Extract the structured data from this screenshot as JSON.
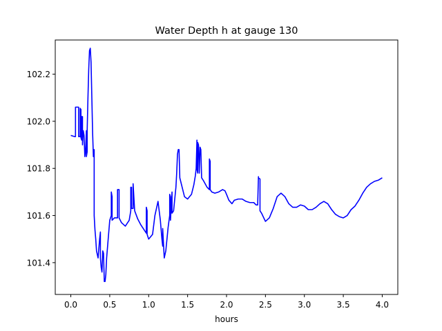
{
  "chart_data": {
    "type": "line",
    "title": "Water Depth h at gauge 130",
    "xlabel": "hours",
    "ylabel": "",
    "xlim": [
      -0.2,
      4.2
    ],
    "ylim": [
      101.265,
      102.345
    ],
    "xticks": [
      0.0,
      0.5,
      1.0,
      1.5,
      2.0,
      2.5,
      3.0,
      3.5,
      4.0
    ],
    "xtick_labels": [
      "0.0",
      "0.5",
      "1.0",
      "1.5",
      "2.0",
      "2.5",
      "3.0",
      "3.5",
      "4.0"
    ],
    "yticks": [
      101.4,
      101.6,
      101.8,
      102.0,
      102.2
    ],
    "ytick_labels": [
      "101.4",
      "101.6",
      "101.8",
      "102.0",
      "102.2"
    ],
    "grid": false,
    "series": [
      {
        "color": "#0000ff",
        "x": [
          0.0,
          0.05,
          0.06,
          0.06,
          0.1,
          0.1,
          0.12,
          0.12,
          0.13,
          0.13,
          0.14,
          0.14,
          0.15,
          0.15,
          0.16,
          0.17,
          0.18,
          0.19,
          0.2,
          0.2,
          0.21,
          0.21,
          0.22,
          0.23,
          0.24,
          0.25,
          0.26,
          0.27,
          0.28,
          0.29,
          0.3,
          0.3,
          0.31,
          0.32,
          0.33,
          0.35,
          0.37,
          0.38,
          0.38,
          0.39,
          0.4,
          0.41,
          0.42,
          0.43,
          0.44,
          0.45,
          0.46,
          0.48,
          0.5,
          0.52,
          0.52,
          0.53,
          0.53,
          0.56,
          0.6,
          0.6,
          0.62,
          0.62,
          0.65,
          0.7,
          0.75,
          0.77,
          0.77,
          0.78,
          0.78,
          0.8,
          0.8,
          0.82,
          0.86,
          0.9,
          0.93,
          0.97,
          0.97,
          0.98,
          0.98,
          1.0,
          1.05,
          1.08,
          1.12,
          1.15,
          1.17,
          1.18,
          1.18,
          1.2,
          1.22,
          1.25,
          1.27,
          1.27,
          1.28,
          1.28,
          1.3,
          1.3,
          1.32,
          1.35,
          1.36,
          1.37,
          1.38,
          1.39,
          1.4,
          1.43,
          1.46,
          1.5,
          1.55,
          1.58,
          1.6,
          1.61,
          1.62,
          1.62,
          1.63,
          1.63,
          1.64,
          1.65,
          1.66,
          1.67,
          1.68,
          1.7,
          1.75,
          1.78,
          1.78,
          1.79,
          1.79,
          1.81,
          1.85,
          1.9,
          1.95,
          1.98,
          2.0,
          2.03,
          2.07,
          2.1,
          2.15,
          2.2,
          2.25,
          2.3,
          2.35,
          2.38,
          2.4,
          2.41,
          2.41,
          2.43,
          2.43,
          2.45,
          2.5,
          2.55,
          2.6,
          2.65,
          2.7,
          2.75,
          2.8,
          2.85,
          2.9,
          2.95,
          3.0,
          3.05,
          3.1,
          3.15,
          3.2,
          3.25,
          3.3,
          3.35,
          3.4,
          3.45,
          3.5,
          3.55,
          3.6,
          3.65,
          3.7,
          3.75,
          3.8,
          3.85,
          3.9,
          3.95,
          4.0
        ],
        "y": [
          101.94,
          101.935,
          101.935,
          102.06,
          102.06,
          101.935,
          101.935,
          102.055,
          102.05,
          101.93,
          101.92,
          102.02,
          102.02,
          101.9,
          101.96,
          101.94,
          101.85,
          101.88,
          101.96,
          101.85,
          101.87,
          101.96,
          102.1,
          102.22,
          102.3,
          102.31,
          102.25,
          102.1,
          101.95,
          101.85,
          101.88,
          101.6,
          101.54,
          101.5,
          101.45,
          101.42,
          101.5,
          101.53,
          101.42,
          101.38,
          101.36,
          101.45,
          101.44,
          101.32,
          101.32,
          101.35,
          101.42,
          101.5,
          101.58,
          101.6,
          101.7,
          101.68,
          101.58,
          101.59,
          101.59,
          101.71,
          101.71,
          101.59,
          101.57,
          101.555,
          101.58,
          101.62,
          101.72,
          101.72,
          101.63,
          101.63,
          101.735,
          101.62,
          101.585,
          101.56,
          101.545,
          101.525,
          101.635,
          101.62,
          101.52,
          101.5,
          101.52,
          101.6,
          101.66,
          101.58,
          101.5,
          101.47,
          101.545,
          101.42,
          101.45,
          101.55,
          101.6,
          101.69,
          101.68,
          101.58,
          101.7,
          101.61,
          101.62,
          101.72,
          101.78,
          101.86,
          101.88,
          101.88,
          101.76,
          101.72,
          101.68,
          101.67,
          101.69,
          101.73,
          101.77,
          101.8,
          101.92,
          101.8,
          101.78,
          101.91,
          101.9,
          101.78,
          101.89,
          101.88,
          101.76,
          101.75,
          101.72,
          101.71,
          101.84,
          101.83,
          101.71,
          101.7,
          101.695,
          101.7,
          101.71,
          101.705,
          101.69,
          101.665,
          101.65,
          101.665,
          101.67,
          101.67,
          101.66,
          101.655,
          101.655,
          101.645,
          101.645,
          101.765,
          101.76,
          101.755,
          101.62,
          101.61,
          101.575,
          101.59,
          101.63,
          101.68,
          101.695,
          101.68,
          101.65,
          101.635,
          101.635,
          101.645,
          101.64,
          101.625,
          101.625,
          101.635,
          101.65,
          101.66,
          101.65,
          101.625,
          101.605,
          101.595,
          101.59,
          101.6,
          101.625,
          101.64,
          101.665,
          101.695,
          101.72,
          101.735,
          101.745,
          101.75,
          101.76
        ]
      }
    ]
  }
}
